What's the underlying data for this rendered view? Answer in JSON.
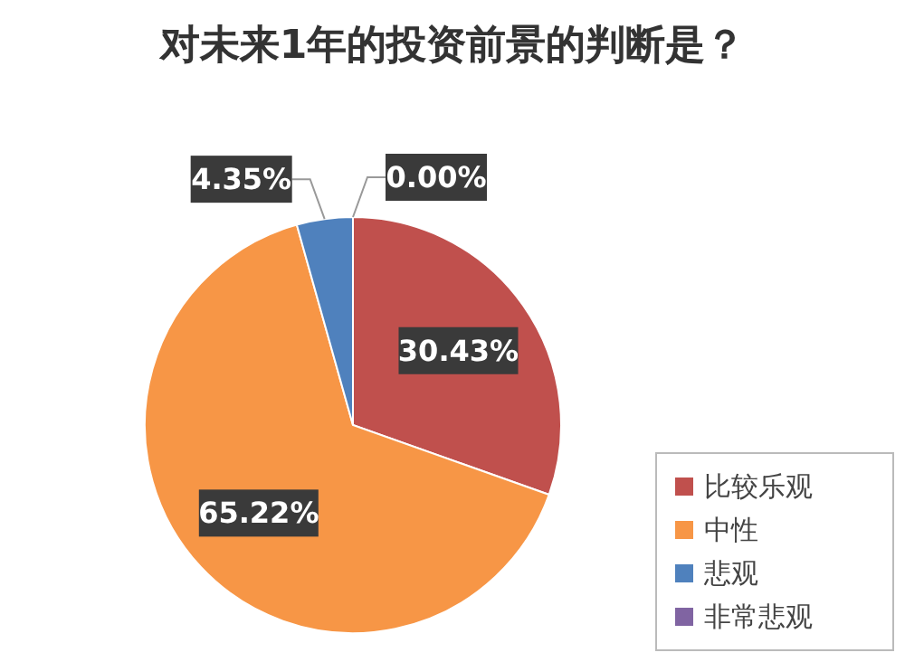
{
  "chart_data": {
    "type": "pie",
    "title": "对未来1年的投资前景的判断是？",
    "categories": [
      "比较乐观",
      "中性",
      "悲观",
      "非常悲观"
    ],
    "values": [
      30.43,
      65.22,
      4.35,
      0.0
    ],
    "colors": [
      "#c0504d",
      "#f79646",
      "#4f81bd",
      "#8064a2"
    ],
    "value_labels": [
      "30.43%",
      "65.22%",
      "4.35%",
      "0.00%"
    ],
    "legend": "bottom right"
  }
}
